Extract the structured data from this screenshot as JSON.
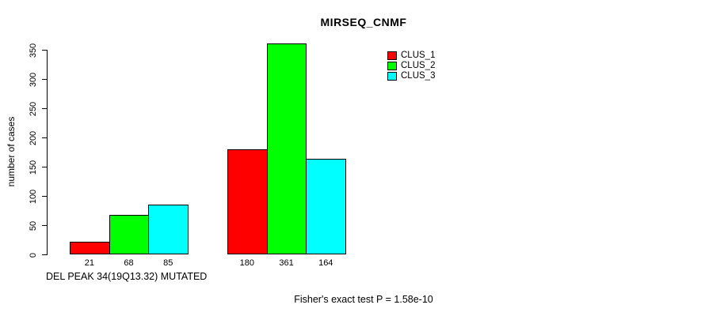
{
  "chart_data": {
    "type": "bar",
    "title": "MIRSEQ_CNMF",
    "ylabel": "number of cases",
    "xlabel": "DEL PEAK 34(19Q13.32) MUTATED",
    "footer": "Fisher's exact test P = 1.58e-10",
    "ylim": [
      0,
      350
    ],
    "yticks": [
      0,
      50,
      100,
      150,
      200,
      250,
      300,
      350
    ],
    "grid": false,
    "legend_position": "top-right-inside",
    "bar_border_color": "#000000",
    "group_count": 2,
    "series": [
      {
        "name": "CLUS_1",
        "color": "#ff0000",
        "values": [
          21,
          180
        ]
      },
      {
        "name": "CLUS_2",
        "color": "#00ff00",
        "values": [
          68,
          361
        ]
      },
      {
        "name": "CLUS_3",
        "color": "#00ffff",
        "values": [
          85,
          164
        ]
      }
    ],
    "bar_value_labels": [
      [
        21,
        68,
        85
      ],
      [
        180,
        361,
        164
      ]
    ]
  }
}
